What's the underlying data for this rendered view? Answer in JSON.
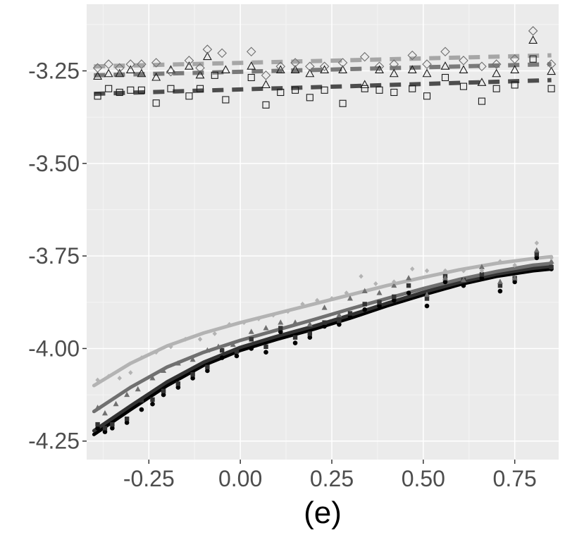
{
  "chart_data": {
    "type": "scatter",
    "title": "",
    "xlabel": "(e)",
    "ylabel": "",
    "xlim": [
      -0.42,
      0.87
    ],
    "ylim": [
      -4.3,
      -3.07
    ],
    "x_ticks": [
      -0.25,
      0.0,
      0.25,
      0.5,
      0.75
    ],
    "x_tick_labels": [
      "-0.25",
      "0.00",
      "0.25",
      "0.50",
      "0.75"
    ],
    "y_ticks": [
      -3.25,
      -3.5,
      -3.75,
      -4.0,
      -4.25
    ],
    "y_tick_labels": [
      "-3.25",
      "-3.50",
      "-3.75",
      "-4.00",
      "-4.25"
    ],
    "grid": true,
    "colors": {
      "panel": "#ebebeb",
      "grid_major": "#ffffff",
      "grid_minor": "#f5f5f5",
      "black": "#000000",
      "dark": "#333333",
      "mid": "#707070",
      "light": "#b3b3b3",
      "dash_dark": "#4d4d4d",
      "dash_mid": "#7a7a7a",
      "dash_light": "#a6a6a6"
    },
    "upper_series": [
      {
        "name": "square-dashed",
        "marker": "square-open",
        "color_key": "dash_dark",
        "x": [
          -0.39,
          -0.36,
          -0.33,
          -0.3,
          -0.27,
          -0.23,
          -0.19,
          -0.14,
          -0.11,
          -0.07,
          -0.04,
          0.03,
          0.07,
          0.11,
          0.15,
          0.19,
          0.23,
          0.28,
          0.34,
          0.38,
          0.42,
          0.47,
          0.51,
          0.56,
          0.61,
          0.66,
          0.7,
          0.75,
          0.8,
          0.85
        ],
        "y": [
          -3.318,
          -3.298,
          -3.308,
          -3.302,
          -3.302,
          -3.337,
          -3.298,
          -3.318,
          -3.298,
          -3.262,
          -3.328,
          -3.268,
          -3.342,
          -3.308,
          -3.302,
          -3.322,
          -3.302,
          -3.338,
          -3.298,
          -3.302,
          -3.308,
          -3.298,
          -3.318,
          -3.268,
          -3.292,
          -3.332,
          -3.298,
          -3.288,
          -3.218,
          -3.298
        ],
        "trend_x": [
          -0.4,
          0.85
        ],
        "trend_y": [
          -3.312,
          -3.275
        ]
      },
      {
        "name": "triangle-dashed",
        "marker": "triangle-open",
        "color_key": "dash_mid",
        "x": [
          -0.39,
          -0.36,
          -0.33,
          -0.3,
          -0.27,
          -0.23,
          -0.19,
          -0.14,
          -0.11,
          -0.09,
          -0.04,
          0.03,
          0.07,
          0.11,
          0.15,
          0.19,
          0.23,
          0.28,
          0.34,
          0.38,
          0.42,
          0.47,
          0.51,
          0.56,
          0.61,
          0.66,
          0.7,
          0.75,
          0.8,
          0.85
        ],
        "y": [
          -3.265,
          -3.258,
          -3.258,
          -3.248,
          -3.258,
          -3.268,
          -3.248,
          -3.238,
          -3.262,
          -3.212,
          -3.248,
          -3.238,
          -3.288,
          -3.248,
          -3.248,
          -3.258,
          -3.248,
          -3.248,
          -3.288,
          -3.248,
          -3.258,
          -3.248,
          -3.258,
          -3.238,
          -3.248,
          -3.282,
          -3.258,
          -3.248,
          -3.168,
          -3.252
        ],
        "trend_x": [
          -0.4,
          0.85
        ],
        "trend_y": [
          -3.262,
          -3.232
        ]
      },
      {
        "name": "diamond-dashed",
        "marker": "diamond-open",
        "color_key": "dash_light",
        "x": [
          -0.39,
          -0.36,
          -0.33,
          -0.3,
          -0.27,
          -0.23,
          -0.19,
          -0.14,
          -0.11,
          -0.09,
          -0.05,
          0.03,
          0.07,
          0.11,
          0.15,
          0.19,
          0.23,
          0.28,
          0.34,
          0.38,
          0.42,
          0.47,
          0.51,
          0.56,
          0.61,
          0.66,
          0.7,
          0.75,
          0.8,
          0.85
        ],
        "y": [
          -3.242,
          -3.232,
          -3.242,
          -3.232,
          -3.232,
          -3.228,
          -3.252,
          -3.222,
          -3.242,
          -3.192,
          -3.202,
          -3.198,
          -3.262,
          -3.238,
          -3.228,
          -3.238,
          -3.238,
          -3.228,
          -3.212,
          -3.238,
          -3.232,
          -3.208,
          -3.232,
          -3.198,
          -3.222,
          -3.238,
          -3.232,
          -3.218,
          -3.142,
          -3.232
        ],
        "trend_x": [
          -0.4,
          0.85
        ],
        "trend_y": [
          -3.238,
          -3.208
        ]
      }
    ],
    "lower_series": [
      {
        "name": "circle-solid",
        "marker": "circle",
        "color_key": "black",
        "x": [
          -0.39,
          -0.37,
          -0.35,
          -0.31,
          -0.27,
          -0.24,
          -0.21,
          -0.17,
          -0.13,
          -0.09,
          -0.05,
          -0.01,
          0.03,
          0.07,
          0.11,
          0.15,
          0.19,
          0.23,
          0.27,
          0.3,
          0.34,
          0.38,
          0.42,
          0.46,
          0.51,
          0.56,
          0.61,
          0.66,
          0.71,
          0.75,
          0.81,
          0.85
        ],
        "y": [
          -4.215,
          -4.225,
          -4.215,
          -4.2,
          -4.165,
          -4.15,
          -4.125,
          -4.105,
          -4.08,
          -4.06,
          -4.025,
          -4.02,
          -4.0,
          -4.01,
          -3.955,
          -3.985,
          -3.97,
          -3.94,
          -3.935,
          -3.915,
          -3.895,
          -3.885,
          -3.87,
          -3.85,
          -3.885,
          -3.82,
          -3.83,
          -3.81,
          -3.845,
          -3.82,
          -3.755,
          -3.785
        ],
        "trend_x": [
          -0.4,
          -0.3,
          -0.2,
          -0.1,
          0.0,
          0.1,
          0.2,
          0.3,
          0.4,
          0.5,
          0.6,
          0.7,
          0.8,
          0.85
        ],
        "trend_y": [
          -4.232,
          -4.165,
          -4.1,
          -4.045,
          -4.005,
          -3.975,
          -3.948,
          -3.918,
          -3.885,
          -3.855,
          -3.827,
          -3.805,
          -3.79,
          -3.785
        ]
      },
      {
        "name": "square-solid",
        "marker": "square",
        "color_key": "dark",
        "x": [
          -0.39,
          -0.37,
          -0.35,
          -0.31,
          -0.27,
          -0.24,
          -0.21,
          -0.17,
          -0.13,
          -0.09,
          -0.05,
          -0.01,
          0.03,
          0.07,
          0.11,
          0.15,
          0.19,
          0.23,
          0.27,
          0.3,
          0.34,
          0.38,
          0.42,
          0.46,
          0.51,
          0.56,
          0.61,
          0.66,
          0.71,
          0.75,
          0.81,
          0.85
        ],
        "y": [
          -4.205,
          -4.215,
          -4.205,
          -4.19,
          -4.14,
          -4.138,
          -4.115,
          -4.095,
          -4.07,
          -4.05,
          -4.005,
          -4.008,
          -3.975,
          -3.995,
          -3.945,
          -3.97,
          -3.96,
          -3.93,
          -3.925,
          -3.905,
          -3.88,
          -3.875,
          -3.86,
          -3.83,
          -3.865,
          -3.805,
          -3.815,
          -3.8,
          -3.83,
          -3.81,
          -3.745,
          -3.78
        ],
        "trend_x": [
          -0.4,
          -0.3,
          -0.2,
          -0.1,
          0.0,
          0.1,
          0.2,
          0.3,
          0.4,
          0.5,
          0.6,
          0.7,
          0.8,
          0.85
        ],
        "trend_y": [
          -4.222,
          -4.155,
          -4.09,
          -4.037,
          -3.997,
          -3.967,
          -3.94,
          -3.91,
          -3.878,
          -3.848,
          -3.821,
          -3.799,
          -3.783,
          -3.778
        ]
      },
      {
        "name": "triangle-solid",
        "marker": "triangle",
        "color_key": "mid",
        "x": [
          -0.39,
          -0.37,
          -0.34,
          -0.31,
          -0.28,
          -0.24,
          -0.21,
          -0.17,
          -0.13,
          -0.09,
          -0.06,
          -0.02,
          0.03,
          0.07,
          0.11,
          0.15,
          0.19,
          0.23,
          0.27,
          0.3,
          0.34,
          0.38,
          0.42,
          0.46,
          0.51,
          0.56,
          0.61,
          0.66,
          0.71,
          0.75,
          0.81,
          0.85
        ],
        "y": [
          -4.16,
          -4.175,
          -4.15,
          -4.125,
          -4.11,
          -4.08,
          -4.06,
          -4.04,
          -4.03,
          -4.005,
          -3.995,
          -3.99,
          -3.955,
          -3.945,
          -3.93,
          -3.93,
          -3.935,
          -3.89,
          -3.91,
          -3.865,
          -3.845,
          -3.85,
          -3.83,
          -3.81,
          -3.855,
          -3.81,
          -3.815,
          -3.78,
          -3.82,
          -3.81,
          -3.735,
          -3.765
        ],
        "trend_x": [
          -0.4,
          -0.3,
          -0.2,
          -0.1,
          0.0,
          0.1,
          0.2,
          0.3,
          0.4,
          0.5,
          0.6,
          0.7,
          0.8,
          0.85
        ],
        "trend_y": [
          -4.17,
          -4.105,
          -4.05,
          -4.01,
          -3.978,
          -3.95,
          -3.922,
          -3.893,
          -3.865,
          -3.838,
          -3.813,
          -3.792,
          -3.775,
          -3.77
        ]
      },
      {
        "name": "diamond-solid",
        "marker": "diamond",
        "color_key": "light",
        "x": [
          -0.39,
          -0.36,
          -0.33,
          -0.3,
          -0.27,
          -0.23,
          -0.19,
          -0.15,
          -0.11,
          -0.07,
          -0.03,
          0.01,
          0.05,
          0.09,
          0.13,
          0.17,
          0.21,
          0.25,
          0.29,
          0.33,
          0.37,
          0.42,
          0.47,
          0.51,
          0.56,
          0.61,
          0.66,
          0.71,
          0.75,
          0.81,
          0.85
        ],
        "y": [
          -4.085,
          -4.075,
          -4.08,
          -4.065,
          -4.025,
          -4.01,
          -3.995,
          -3.975,
          -3.975,
          -3.96,
          -3.935,
          -3.93,
          -3.92,
          -3.91,
          -3.9,
          -3.88,
          -3.87,
          -3.865,
          -3.85,
          -3.805,
          -3.825,
          -3.82,
          -3.785,
          -3.79,
          -3.79,
          -3.79,
          -3.79,
          -3.765,
          -3.775,
          -3.715,
          -3.755
        ],
        "trend_x": [
          -0.4,
          -0.3,
          -0.2,
          -0.1,
          0.0,
          0.1,
          0.2,
          0.3,
          0.4,
          0.5,
          0.6,
          0.7,
          0.8,
          0.85
        ],
        "trend_y": [
          -4.1,
          -4.04,
          -3.993,
          -3.958,
          -3.93,
          -3.905,
          -3.88,
          -3.855,
          -3.83,
          -3.808,
          -3.787,
          -3.77,
          -3.757,
          -3.752
        ]
      }
    ]
  }
}
